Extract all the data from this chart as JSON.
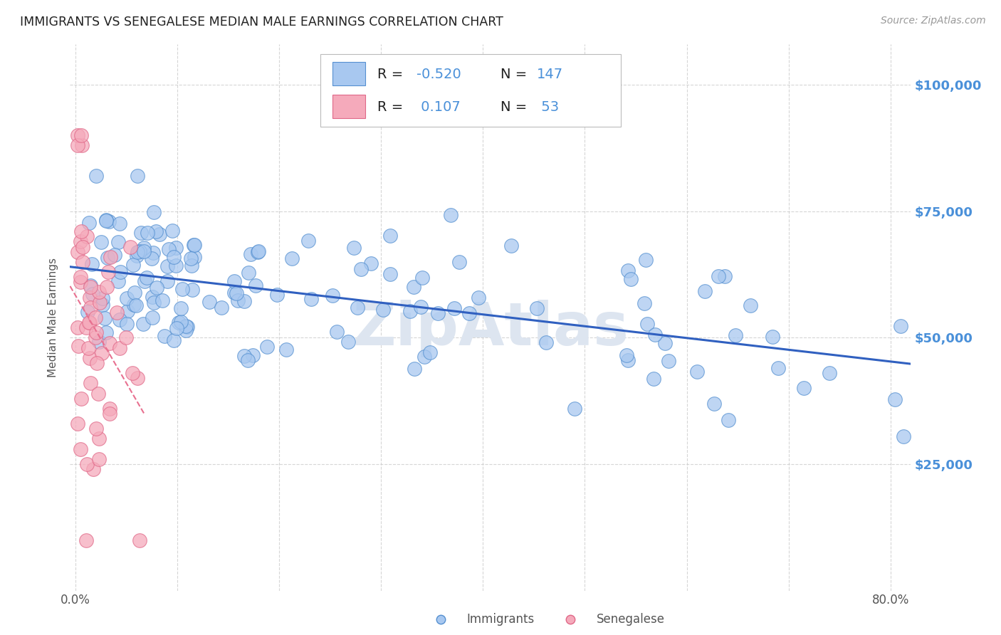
{
  "title": "IMMIGRANTS VS SENEGALESE MEDIAN MALE EARNINGS CORRELATION CHART",
  "source": "Source: ZipAtlas.com",
  "ylabel": "Median Male Earnings",
  "ytick_labels": [
    "$25,000",
    "$50,000",
    "$75,000",
    "$100,000"
  ],
  "ytick_values": [
    25000,
    50000,
    75000,
    100000
  ],
  "ymin": 0,
  "ymax": 108000,
  "xmin": -0.005,
  "xmax": 0.82,
  "legend_r_imm": "-0.520",
  "legend_n_imm": "147",
  "legend_r_sen": "0.107",
  "legend_n_sen": "53",
  "imm_fill": "#a8c8f0",
  "imm_edge": "#5590d0",
  "sen_fill": "#f5aabb",
  "sen_edge": "#e06888",
  "trend_imm_color": "#3060c0",
  "trend_sen_color": "#e87090",
  "bg_color": "#ffffff",
  "grid_color": "#cccccc",
  "right_tick_color": "#4a90d9",
  "watermark_color": "#dde5f0",
  "legend_blue": "#4a90d9",
  "legend_red": "#e05070"
}
